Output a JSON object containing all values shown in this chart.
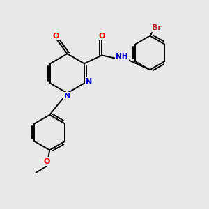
{
  "bg_color": "#e8e8e8",
  "bond_color": "#000000",
  "atom_colors": {
    "O": "#ff0000",
    "N": "#0000cd",
    "Br": "#a52a2a",
    "NH": "#0000cd",
    "C": "#000000"
  },
  "use_rdkit": true
}
